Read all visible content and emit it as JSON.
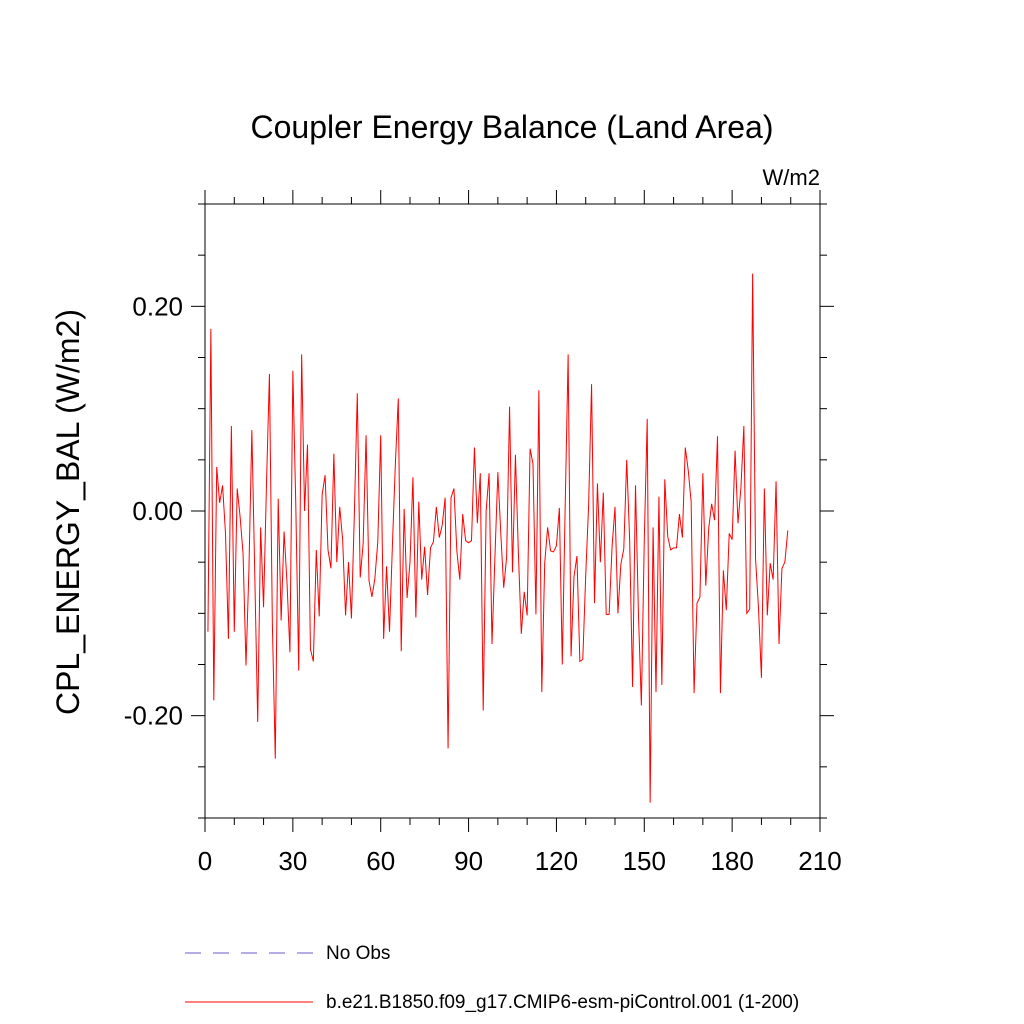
{
  "chart_data": {
    "type": "line",
    "title": "Coupler Energy Balance (Land Area)",
    "units_label": "W/m2",
    "ylabel": "CPL_ENERGY_BAL  (W/m2)",
    "xlabel": "",
    "xlim": [
      0,
      210
    ],
    "ylim": [
      -0.3,
      0.3
    ],
    "x_ticks": [
      0,
      30,
      60,
      90,
      120,
      150,
      180,
      210
    ],
    "x_tick_labels": [
      "0",
      "30",
      "60",
      "90",
      "120",
      "150",
      "180",
      "210"
    ],
    "y_ticks": [
      -0.2,
      0.0,
      0.2
    ],
    "y_tick_labels": [
      "-0.20",
      "0.00",
      "0.20"
    ],
    "x_minor_step": 10,
    "y_minor_step": 0.05,
    "grid": false,
    "legend_position": "bottom-left",
    "series": [
      {
        "name": "No Obs",
        "color": "#6a5acd",
        "style": "dashed",
        "values": []
      },
      {
        "name": "b.e21.B1850.f09_g17.CMIP6-esm-piControl.001 (1-200)",
        "color": "#ff0000",
        "style": "solid",
        "x_start": 1,
        "values": [
          -0.118,
          0.178,
          -0.185,
          0.043,
          0.008,
          0.025,
          -0.022,
          -0.125,
          0.083,
          -0.118,
          0.022,
          -0.006,
          -0.042,
          -0.151,
          -0.057,
          0.079,
          -0.063,
          -0.206,
          -0.016,
          -0.094,
          0.027,
          0.134,
          -0.11,
          -0.242,
          0.012,
          -0.107,
          -0.02,
          -0.07,
          -0.138,
          0.137,
          0.006,
          -0.156,
          0.153,
          0.0,
          0.065,
          -0.135,
          -0.147,
          -0.038,
          -0.103,
          0.016,
          0.035,
          -0.038,
          -0.056,
          0.056,
          -0.05,
          0.004,
          -0.028,
          -0.102,
          -0.05,
          -0.105,
          -0.003,
          0.115,
          -0.065,
          -0.032,
          0.074,
          -0.068,
          -0.084,
          -0.066,
          -0.03,
          0.074,
          -0.125,
          -0.054,
          -0.118,
          -0.033,
          0.046,
          0.11,
          -0.137,
          0.002,
          -0.085,
          -0.05,
          0.033,
          -0.104,
          0.009,
          -0.067,
          -0.035,
          -0.082,
          -0.036,
          -0.03,
          0.004,
          -0.026,
          -0.014,
          0.013,
          -0.232,
          0.013,
          0.022,
          -0.039,
          -0.067,
          -0.003,
          -0.029,
          -0.031,
          -0.029,
          0.062,
          -0.012,
          0.037,
          -0.195,
          0.0,
          0.037,
          -0.13,
          -0.045,
          0.038,
          -0.022,
          -0.075,
          -0.045,
          0.102,
          -0.06,
          0.055,
          -0.04,
          -0.12,
          -0.079,
          -0.102,
          0.061,
          0.046,
          -0.101,
          0.118,
          -0.177,
          -0.051,
          -0.016,
          -0.039,
          -0.04,
          -0.034,
          0.003,
          -0.15,
          0.006,
          0.153,
          -0.142,
          -0.064,
          -0.044,
          -0.147,
          -0.145,
          -0.063,
          0.006,
          0.124,
          -0.09,
          0.027,
          -0.05,
          0.018,
          -0.101,
          -0.101,
          -0.035,
          0.004,
          -0.1,
          -0.052,
          -0.037,
          0.05,
          -0.028,
          -0.172,
          0.025,
          -0.1,
          -0.19,
          -0.028,
          0.09,
          -0.285,
          -0.016,
          -0.177,
          0.014,
          -0.17,
          0.031,
          -0.025,
          -0.038,
          -0.036,
          -0.036,
          -0.003,
          -0.026,
          0.062,
          0.04,
          0.009,
          -0.178,
          -0.09,
          -0.084,
          0.037,
          -0.073,
          -0.017,
          0.007,
          -0.009,
          0.073,
          -0.178,
          -0.058,
          -0.097,
          -0.022,
          -0.028,
          0.059,
          -0.012,
          0.023,
          0.083,
          -0.1,
          -0.096,
          0.232,
          -0.047,
          -0.095,
          -0.163,
          0.022,
          -0.102,
          -0.051,
          -0.067,
          0.029,
          -0.13,
          -0.056,
          -0.05,
          -0.019
        ]
      }
    ]
  }
}
